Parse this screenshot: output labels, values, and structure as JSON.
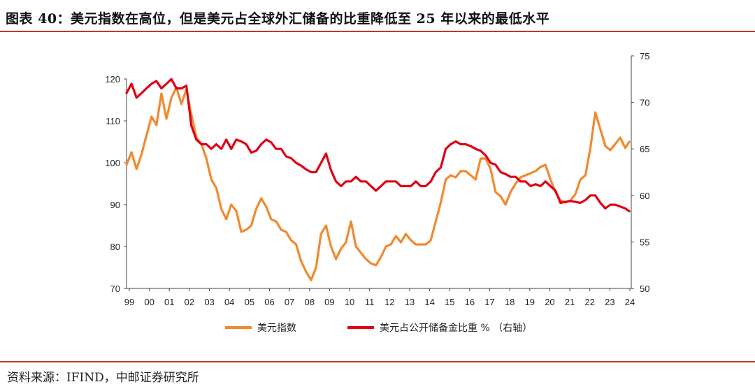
{
  "header": {
    "title": "图表 40：美元指数在高位，但是美元占全球外汇储备的比重降低至 25 年以来的最低水平"
  },
  "footer": {
    "source": "资料来源：IFIND，中邮证券研究所"
  },
  "colors": {
    "dxy": "#f08a30",
    "share": "#e00016",
    "accent_rule": "#c0392b"
  },
  "chart_data": {
    "type": "line",
    "title": "",
    "xlabel": "",
    "ylabel": "",
    "y_left_range": [
      70,
      120
    ],
    "y_left_ticks": [
      "70",
      "80",
      "90",
      "100",
      "110",
      "120"
    ],
    "y_right_range": [
      50,
      75
    ],
    "y_right_ticks": [
      "50",
      "55",
      "60",
      "65",
      "70",
      "75"
    ],
    "x_range": [
      1999,
      2024.3
    ],
    "x_ticks": [
      "99",
      "00",
      "01",
      "02",
      "03",
      "04",
      "05",
      "06",
      "07",
      "08",
      "09",
      "10",
      "11",
      "12",
      "13",
      "14",
      "15",
      "16",
      "17",
      "18",
      "19",
      "20",
      "21",
      "22",
      "23",
      "24"
    ],
    "grid": false,
    "legend_position": "bottom",
    "series": [
      {
        "name": "美元指数",
        "axis": "left",
        "x": [
          1999.0,
          1999.25,
          1999.5,
          1999.75,
          2000.0,
          2000.25,
          2000.5,
          2000.75,
          2001.0,
          2001.25,
          2001.5,
          2001.75,
          2002.0,
          2002.25,
          2002.5,
          2002.75,
          2003.0,
          2003.25,
          2003.5,
          2003.75,
          2004.0,
          2004.25,
          2004.5,
          2004.75,
          2005.0,
          2005.25,
          2005.5,
          2005.75,
          2006.0,
          2006.25,
          2006.5,
          2006.75,
          2007.0,
          2007.25,
          2007.5,
          2007.75,
          2008.0,
          2008.25,
          2008.5,
          2008.75,
          2009.0,
          2009.25,
          2009.5,
          2009.75,
          2010.0,
          2010.25,
          2010.5,
          2010.75,
          2011.0,
          2011.25,
          2011.5,
          2011.75,
          2012.0,
          2012.25,
          2012.5,
          2012.75,
          2013.0,
          2013.25,
          2013.5,
          2013.75,
          2014.0,
          2014.25,
          2014.5,
          2014.75,
          2015.0,
          2015.25,
          2015.5,
          2015.75,
          2016.0,
          2016.25,
          2016.5,
          2016.75,
          2017.0,
          2017.25,
          2017.5,
          2017.75,
          2018.0,
          2018.25,
          2018.5,
          2018.75,
          2019.0,
          2019.25,
          2019.5,
          2019.75,
          2020.0,
          2020.25,
          2020.5,
          2020.75,
          2021.0,
          2021.25,
          2021.5,
          2021.75,
          2022.0,
          2022.25,
          2022.5,
          2022.75,
          2023.0,
          2023.25,
          2023.5,
          2023.75,
          2024.0,
          2024.2
        ],
        "values": [
          99.5,
          102.5,
          98.5,
          102,
          106.5,
          111,
          109,
          116.5,
          110.5,
          115.5,
          118,
          114,
          117.5,
          111.5,
          106,
          104.5,
          101,
          96,
          94,
          89,
          86.5,
          90,
          88.5,
          83.5,
          84,
          85,
          89,
          91.5,
          89.5,
          86.5,
          86,
          84,
          83.5,
          81.5,
          80.5,
          76.5,
          74,
          72,
          75,
          83,
          85,
          80,
          77,
          79.5,
          81,
          86,
          80,
          78.5,
          77,
          76,
          75.5,
          77.5,
          80,
          80.5,
          82.5,
          81,
          83,
          81.5,
          80.5,
          80.5,
          80.5,
          81.5,
          86,
          90.5,
          96,
          97,
          96.5,
          98,
          98,
          97,
          96,
          101,
          101,
          98.5,
          93,
          92,
          90,
          93,
          95,
          96.5,
          97,
          97.5,
          98,
          99,
          99.5,
          96,
          93,
          91,
          90.5,
          91,
          92.5,
          96,
          97,
          103.5,
          112,
          108,
          104,
          103,
          104.5,
          106,
          103.5,
          105
        ]
      },
      {
        "name": "美元占公开储备金比重 % （右轴）",
        "axis": "right",
        "x": [
          1999.0,
          1999.25,
          1999.5,
          1999.75,
          2000.0,
          2000.25,
          2000.5,
          2000.75,
          2001.0,
          2001.25,
          2001.5,
          2001.75,
          2002.0,
          2002.25,
          2002.5,
          2002.75,
          2003.0,
          2003.25,
          2003.5,
          2003.75,
          2004.0,
          2004.25,
          2004.5,
          2004.75,
          2005.0,
          2005.25,
          2005.5,
          2005.75,
          2006.0,
          2006.25,
          2006.5,
          2006.75,
          2007.0,
          2007.25,
          2007.5,
          2007.75,
          2008.0,
          2008.25,
          2008.5,
          2008.75,
          2009.0,
          2009.25,
          2009.5,
          2009.75,
          2010.0,
          2010.25,
          2010.5,
          2010.75,
          2011.0,
          2011.25,
          2011.5,
          2011.75,
          2012.0,
          2012.25,
          2012.5,
          2012.75,
          2013.0,
          2013.25,
          2013.5,
          2013.75,
          2014.0,
          2014.25,
          2014.5,
          2014.75,
          2015.0,
          2015.25,
          2015.5,
          2015.75,
          2016.0,
          2016.25,
          2016.5,
          2016.75,
          2017.0,
          2017.25,
          2017.5,
          2017.75,
          2018.0,
          2018.25,
          2018.5,
          2018.75,
          2019.0,
          2019.25,
          2019.5,
          2019.75,
          2020.0,
          2020.25,
          2020.5,
          2020.75,
          2021.0,
          2021.25,
          2021.5,
          2021.75,
          2022.0,
          2022.25,
          2022.5,
          2022.75,
          2023.0,
          2023.25,
          2023.5,
          2023.75,
          2024.0,
          2024.2
        ],
        "values": [
          71,
          72,
          70.5,
          71,
          71.5,
          72,
          72.3,
          71.5,
          72,
          72.5,
          71.5,
          71.5,
          71.8,
          67.5,
          66,
          65.5,
          65.5,
          65,
          65.5,
          65,
          66,
          65,
          66,
          65.8,
          65.5,
          64.6,
          64.8,
          65.5,
          66,
          65.7,
          65,
          65,
          64.2,
          64,
          63.5,
          63.2,
          62.8,
          62.5,
          62.5,
          63.5,
          64.5,
          62.7,
          61.5,
          61,
          61.5,
          61.5,
          62,
          61.5,
          61.5,
          61,
          60.5,
          61,
          61.5,
          61.5,
          61.5,
          61,
          61,
          61,
          61.5,
          61,
          61,
          61.5,
          62.5,
          63,
          65,
          65.5,
          65.8,
          65.5,
          65.5,
          65.3,
          65,
          64.8,
          64.3,
          63.5,
          63.3,
          62.5,
          62.3,
          62,
          62,
          61.5,
          61.5,
          61,
          61.2,
          61,
          61.5,
          61,
          60.5,
          59.2,
          59.3,
          59.4,
          59.3,
          59.2,
          59.5,
          60,
          60,
          59.2,
          58.6,
          59,
          59,
          58.8,
          58.6,
          58.3
        ]
      }
    ]
  }
}
